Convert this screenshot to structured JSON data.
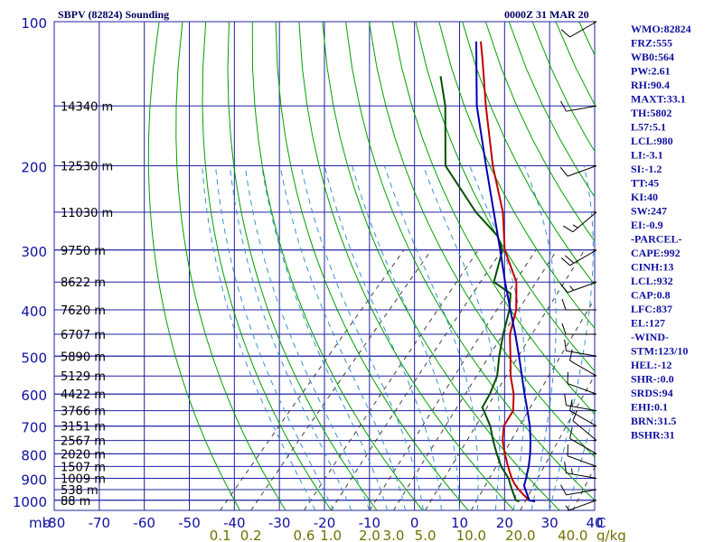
{
  "chart_data": {
    "type": "line",
    "title": "SBPV (82824) Sounding",
    "time": "0000Z 31 MAR 20",
    "xlabel": "C",
    "ylabel": "mb",
    "xlim": [
      -80,
      40
    ],
    "ylim": [
      1050,
      100
    ],
    "y_scale": "log",
    "grid": true,
    "pressure_ticks": [
      "100",
      "200",
      "300",
      "400",
      "500",
      "600",
      "700",
      "800",
      "900",
      "1000"
    ],
    "temp_ticks": [
      "-80",
      "-70",
      "-60",
      "-50",
      "-40",
      "-30",
      "-20",
      "-10",
      "0",
      "10",
      "20",
      "30",
      "40"
    ],
    "mixing_ratio_labels": [
      "0.1",
      "0.2",
      "0.6",
      "1.0",
      "2.0",
      "3.0",
      "5.0",
      "10.0",
      "20.0",
      "40.0"
    ],
    "mixing_ratio_unit": "g/kg",
    "height_labels": [
      {
        "p": 150,
        "label": "14340 m"
      },
      {
        "p": 200,
        "label": "12530 m"
      },
      {
        "p": 250,
        "label": "11030 m"
      },
      {
        "p": 300,
        "label": "9750 m"
      },
      {
        "p": 350,
        "label": "8622 m"
      },
      {
        "p": 400,
        "label": "7620 m"
      },
      {
        "p": 450,
        "label": "6707 m"
      },
      {
        "p": 500,
        "label": "5890 m"
      },
      {
        "p": 550,
        "label": "5129 m"
      },
      {
        "p": 600,
        "label": "4422 m"
      },
      {
        "p": 650,
        "label": "3766 m"
      },
      {
        "p": 700,
        "label": "3151 m"
      },
      {
        "p": 750,
        "label": "2567 m"
      },
      {
        "p": 800,
        "label": "2020 m"
      },
      {
        "p": 850,
        "label": "1507 m"
      },
      {
        "p": 900,
        "label": "1009 m"
      },
      {
        "p": 950,
        "label": "538 m"
      },
      {
        "p": 1000,
        "label": "88 m"
      }
    ],
    "series": [
      {
        "name": "Temperature",
        "color": "#c00000",
        "points": [
          [
            1006,
            27
          ],
          [
            1000,
            25.5
          ],
          [
            975,
            23.2
          ],
          [
            950,
            21.0
          ],
          [
            925,
            19.0
          ],
          [
            900,
            17.2
          ],
          [
            850,
            14.0
          ],
          [
            800,
            10.8
          ],
          [
            750,
            7.6
          ],
          [
            700,
            5.0
          ],
          [
            650,
            4.0
          ],
          [
            600,
            0.8
          ],
          [
            550,
            -3.5
          ],
          [
            500,
            -7.5
          ],
          [
            450,
            -12.0
          ],
          [
            400,
            -15.5
          ],
          [
            350,
            -21.0
          ],
          [
            300,
            -30.0
          ],
          [
            250,
            -38.0
          ],
          [
            200,
            -49.5
          ],
          [
            150,
            -63.0
          ],
          [
            120,
            -73.0
          ],
          [
            110,
            -77.0
          ]
        ]
      },
      {
        "name": "Dewpoint",
        "color": "#005000",
        "points": [
          [
            1006,
            23.5
          ],
          [
            1000,
            22.5
          ],
          [
            975,
            21.0
          ],
          [
            950,
            19.5
          ],
          [
            925,
            18.0
          ],
          [
            900,
            16.5
          ],
          [
            850,
            12.5
          ],
          [
            800,
            9.0
          ],
          [
            750,
            5.5
          ],
          [
            700,
            2.0
          ],
          [
            650,
            -2.5
          ],
          [
            640,
            -3.5
          ],
          [
            600,
            -4.5
          ],
          [
            550,
            -6.5
          ],
          [
            500,
            -10.0
          ],
          [
            450,
            -13.5
          ],
          [
            400,
            -17.0
          ],
          [
            370,
            -20.0
          ],
          [
            350,
            -26.0
          ],
          [
            300,
            -30.5
          ],
          [
            280,
            -34.5
          ],
          [
            250,
            -44.0
          ],
          [
            200,
            -60.0
          ],
          [
            150,
            -72.0
          ],
          [
            130,
            -79.0
          ]
        ]
      },
      {
        "name": "Parcel",
        "color": "#0000b0",
        "points": [
          [
            1006,
            27
          ],
          [
            1000,
            25.5
          ],
          [
            950,
            22.5
          ],
          [
            932,
            21.4
          ],
          [
            900,
            20.4
          ],
          [
            850,
            18.6
          ],
          [
            800,
            16.4
          ],
          [
            750,
            13.8
          ],
          [
            700,
            10.8
          ],
          [
            650,
            7.2
          ],
          [
            600,
            3.2
          ],
          [
            550,
            -1.0
          ],
          [
            500,
            -5.6
          ],
          [
            450,
            -10.8
          ],
          [
            400,
            -16.8
          ],
          [
            350,
            -23.5
          ],
          [
            300,
            -31.0
          ],
          [
            250,
            -40.0
          ],
          [
            200,
            -51.0
          ],
          [
            150,
            -65.0
          ],
          [
            127,
            -72.0
          ],
          [
            110,
            -78.0
          ]
        ]
      }
    ],
    "indices": [
      "WMO:82824",
      "FRZ:555",
      "WB0:564",
      "PW:2.61",
      "RH:90.4",
      "MAXT:33.1",
      "TH:5802",
      "L57:5.1",
      "LCL:980",
      "LI:-3.1",
      "SI:-1.2",
      "TT:45",
      "KI:40",
      "SW:247",
      "EI:-0.9",
      "-PARCEL-",
      "CAPE:992",
      "CINH:13",
      "LCL:932",
      "CAP:0.8",
      "LFC:837",
      "EL:127",
      "-WIND-",
      "STM:123/10",
      "HEL:-12",
      "SHR-:0.0",
      "SRDS:94",
      "EHI:0.1",
      "BRN:31.5",
      "BSHR:31"
    ],
    "wind_barbs": [
      {
        "p": 1000,
        "dir": 250,
        "spd": 5
      },
      {
        "p": 950,
        "dir": 260,
        "spd": 10
      },
      {
        "p": 900,
        "dir": 280,
        "spd": 15
      },
      {
        "p": 850,
        "dir": 290,
        "spd": 10
      },
      {
        "p": 800,
        "dir": 300,
        "spd": 10
      },
      {
        "p": 750,
        "dir": 310,
        "spd": 10
      },
      {
        "p": 700,
        "dir": 300,
        "spd": 10
      },
      {
        "p": 650,
        "dir": 280,
        "spd": 15
      },
      {
        "p": 600,
        "dir": 290,
        "spd": 10
      },
      {
        "p": 550,
        "dir": 300,
        "spd": 10
      },
      {
        "p": 500,
        "dir": 280,
        "spd": 10
      },
      {
        "p": 450,
        "dir": 270,
        "spd": 10
      },
      {
        "p": 400,
        "dir": 270,
        "spd": 10
      },
      {
        "p": 350,
        "dir": 250,
        "spd": 15
      },
      {
        "p": 300,
        "dir": 240,
        "spd": 20
      },
      {
        "p": 250,
        "dir": 230,
        "spd": 15
      },
      {
        "p": 200,
        "dir": 250,
        "spd": 10
      },
      {
        "p": 150,
        "dir": 260,
        "spd": 10
      },
      {
        "p": 100,
        "dir": 240,
        "spd": 10
      }
    ],
    "colors": {
      "grid": "#2020a0",
      "dry_adiabat": "#00a000",
      "mixing_ratio": "#404040",
      "moist_adiabat": "#3b90d0",
      "label_blue": "#1010a0",
      "label_olive": "#707000"
    }
  }
}
